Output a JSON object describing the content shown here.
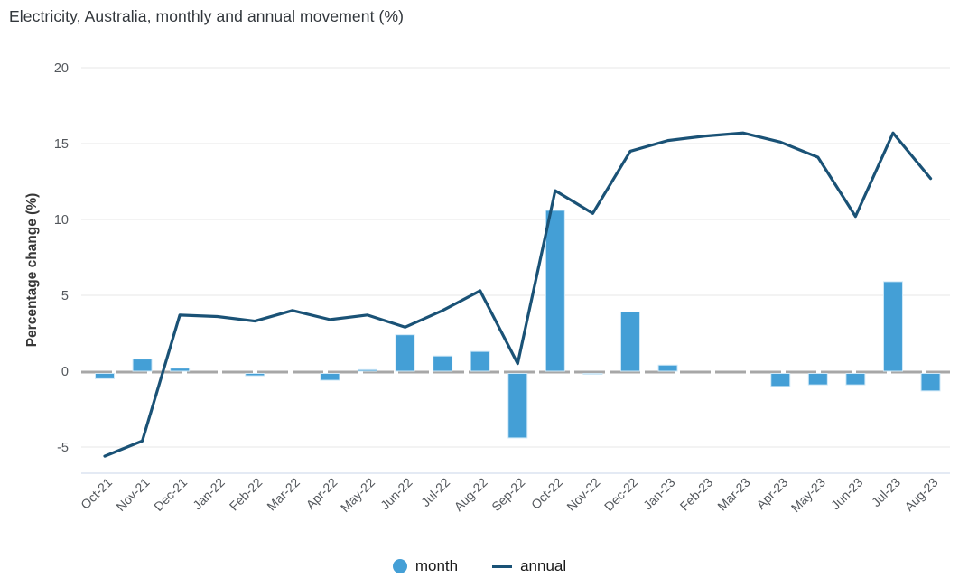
{
  "title": "Electricity, Australia, monthly and annual movement (%)",
  "y_axis": {
    "label": "Percentage change (%)",
    "ticks": [
      20,
      15,
      10,
      5,
      0,
      -5
    ]
  },
  "legend": {
    "items": [
      {
        "label": "month",
        "swatch": "circle"
      },
      {
        "label": "annual",
        "swatch": "line"
      }
    ]
  },
  "colors": {
    "bar": "#449fd6",
    "bar_border": "#cfe8f7",
    "line": "#1a5276",
    "grid": "#efefef",
    "zero_line": "#a7a7a7",
    "bottom_border": "#dbe3f0",
    "axis_text": "#53575c",
    "title_text": "#32373c",
    "legend_text": "#1a1a1a"
  },
  "chart_data": {
    "type": "bar",
    "subtype": "bar+line combo",
    "title": "Electricity, Australia, monthly and annual movement (%)",
    "xlabel": "",
    "ylabel": "Percentage change (%)",
    "ylim": [
      -6.7,
      20
    ],
    "yticks": [
      20,
      15,
      10,
      5,
      0,
      -5
    ],
    "grid": "horizontal",
    "legend_position": "bottom",
    "categories": [
      "Oct-21",
      "Nov-21",
      "Dec-21",
      "Jan-22",
      "Feb-22",
      "Mar-22",
      "Apr-22",
      "May-22",
      "Jun-22",
      "Jul-22",
      "Aug-22",
      "Sep-22",
      "Oct-22",
      "Nov-22",
      "Dec-22",
      "Jan-23",
      "Feb-23",
      "Mar-23",
      "Apr-23",
      "May-23",
      "Jun-23",
      "Jul-23",
      "Aug-23"
    ],
    "series": [
      {
        "name": "month",
        "type": "bar",
        "color": "#449fd6",
        "values": [
          -0.5,
          0.8,
          0.2,
          0,
          -0.3,
          0,
          -0.6,
          0.1,
          2.4,
          1.0,
          1.3,
          -4.4,
          10.6,
          -0.2,
          3.9,
          0.4,
          0,
          0,
          -1.0,
          -0.9,
          -0.9,
          5.9,
          -1.3
        ]
      },
      {
        "name": "annual",
        "type": "line",
        "color": "#1a5276",
        "values": [
          -5.6,
          -4.6,
          3.7,
          3.6,
          3.3,
          4.0,
          3.4,
          3.7,
          2.9,
          4.0,
          5.3,
          0.5,
          11.9,
          10.4,
          14.5,
          15.2,
          15.5,
          15.7,
          15.1,
          14.1,
          10.2,
          15.7,
          12.7
        ]
      }
    ]
  }
}
